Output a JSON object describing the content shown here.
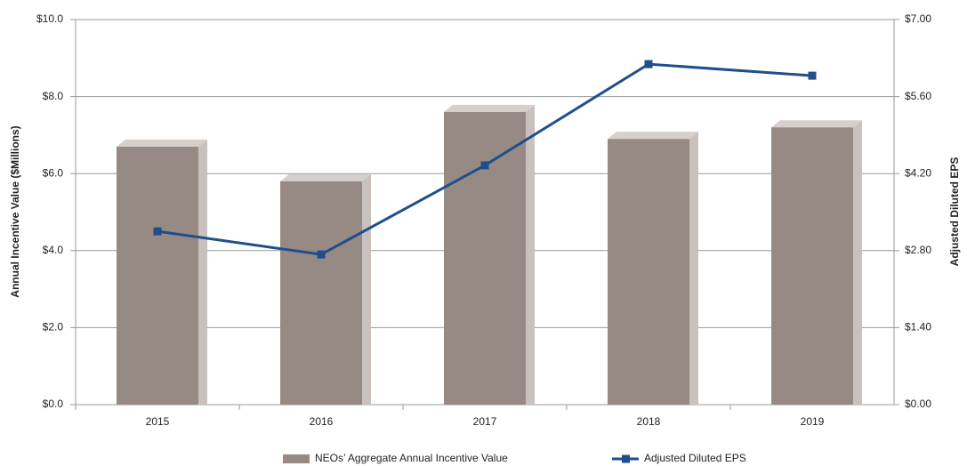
{
  "chart_data": {
    "type": "bar_line",
    "categories": [
      "2015",
      "2016",
      "2017",
      "2018",
      "2019"
    ],
    "ylabel": "Annual Incentive Value ($Millions)",
    "y2label": "Adjusted Diluted EPS",
    "ylim": [
      0,
      10
    ],
    "yticks": [
      {
        "value": 0,
        "label": "$0.0"
      },
      {
        "value": 2,
        "label": "$2.0"
      },
      {
        "value": 4,
        "label": "$4.0"
      },
      {
        "value": 6,
        "label": "$6.0"
      },
      {
        "value": 8,
        "label": "$8.0"
      },
      {
        "value": 10,
        "label": "$10.0"
      }
    ],
    "y2lim": [
      0,
      7
    ],
    "y2ticks": [
      {
        "value": 0,
        "label": "$0.00"
      },
      {
        "value": 1.4,
        "label": "$1.40"
      },
      {
        "value": 2.8,
        "label": "$2.80"
      },
      {
        "value": 4.2,
        "label": "$4.20"
      },
      {
        "value": 5.6,
        "label": "$5.60"
      },
      {
        "value": 7,
        "label": "$7.00"
      }
    ],
    "grid": true,
    "legend": "bottom",
    "series": [
      {
        "name": "NEOs’ Aggregate Annual Incentive Value",
        "type": "bar",
        "color": "#978a84",
        "values": [
          6.7,
          5.8,
          7.6,
          6.9,
          7.2
        ]
      },
      {
        "name": "Adjusted Diluted EPS",
        "type": "line",
        "axis": "y2",
        "color": "#1f4e8c",
        "values": [
          3.15,
          2.73,
          4.35,
          6.19,
          5.98
        ]
      }
    ]
  }
}
